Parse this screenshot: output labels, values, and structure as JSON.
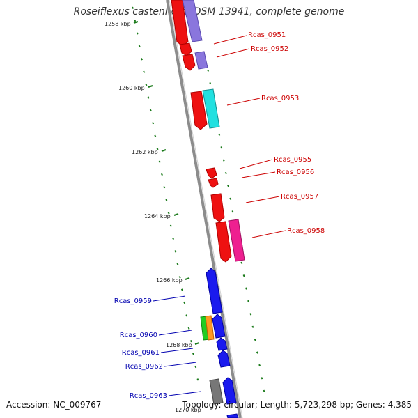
{
  "title": "Roseiflexus castenholzii DSM 13941, complete genome",
  "accession": "Accession: NC_009767",
  "summary": "Topology: circular; Length: 5,723,298 bp; Genes: 4,385",
  "colors": {
    "backbone": "#8c8c8c",
    "tick": "#1a7a1a",
    "label_red": "#cc0000",
    "label_blue": "#0000b0"
  },
  "kbp_labels": [
    "1258 kbp",
    "1260 kbp",
    "1262 kbp",
    "1264 kbp",
    "1266 kbp",
    "1268 kbp",
    "1270 kbp"
  ],
  "gene_labels_right": [
    "Rcas_0951",
    "Rcas_0952",
    "Rcas_0953",
    "Rcas_0955",
    "Rcas_0956",
    "Rcas_0957",
    "Rcas_0958"
  ],
  "gene_labels_left": [
    "Rcas_0959",
    "Rcas_0960",
    "Rcas_0961",
    "Rcas_0962",
    "Rcas_0963"
  ]
}
